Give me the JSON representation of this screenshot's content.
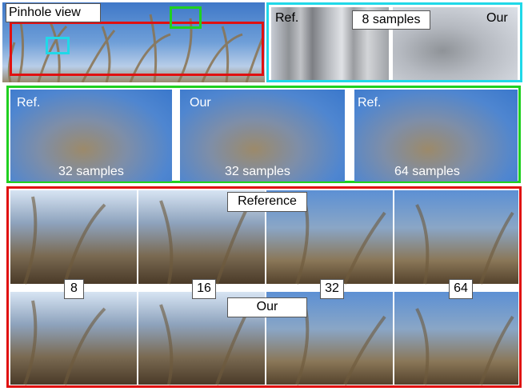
{
  "pinhole": {
    "label": "Pinhole view"
  },
  "inset_top": {
    "left_label": "Ref.",
    "center_label": "8 samples",
    "right_label": "Our"
  },
  "inset_middle": {
    "panels": [
      {
        "label": "Ref.",
        "samples": "32 samples"
      },
      {
        "label": "Our",
        "samples": "32 samples"
      },
      {
        "label": "Ref.",
        "samples": "64 samples"
      }
    ]
  },
  "comparison": {
    "top_label": "Reference",
    "bottom_label": "Our",
    "sample_counts": [
      "8",
      "16",
      "32",
      "64"
    ]
  }
}
